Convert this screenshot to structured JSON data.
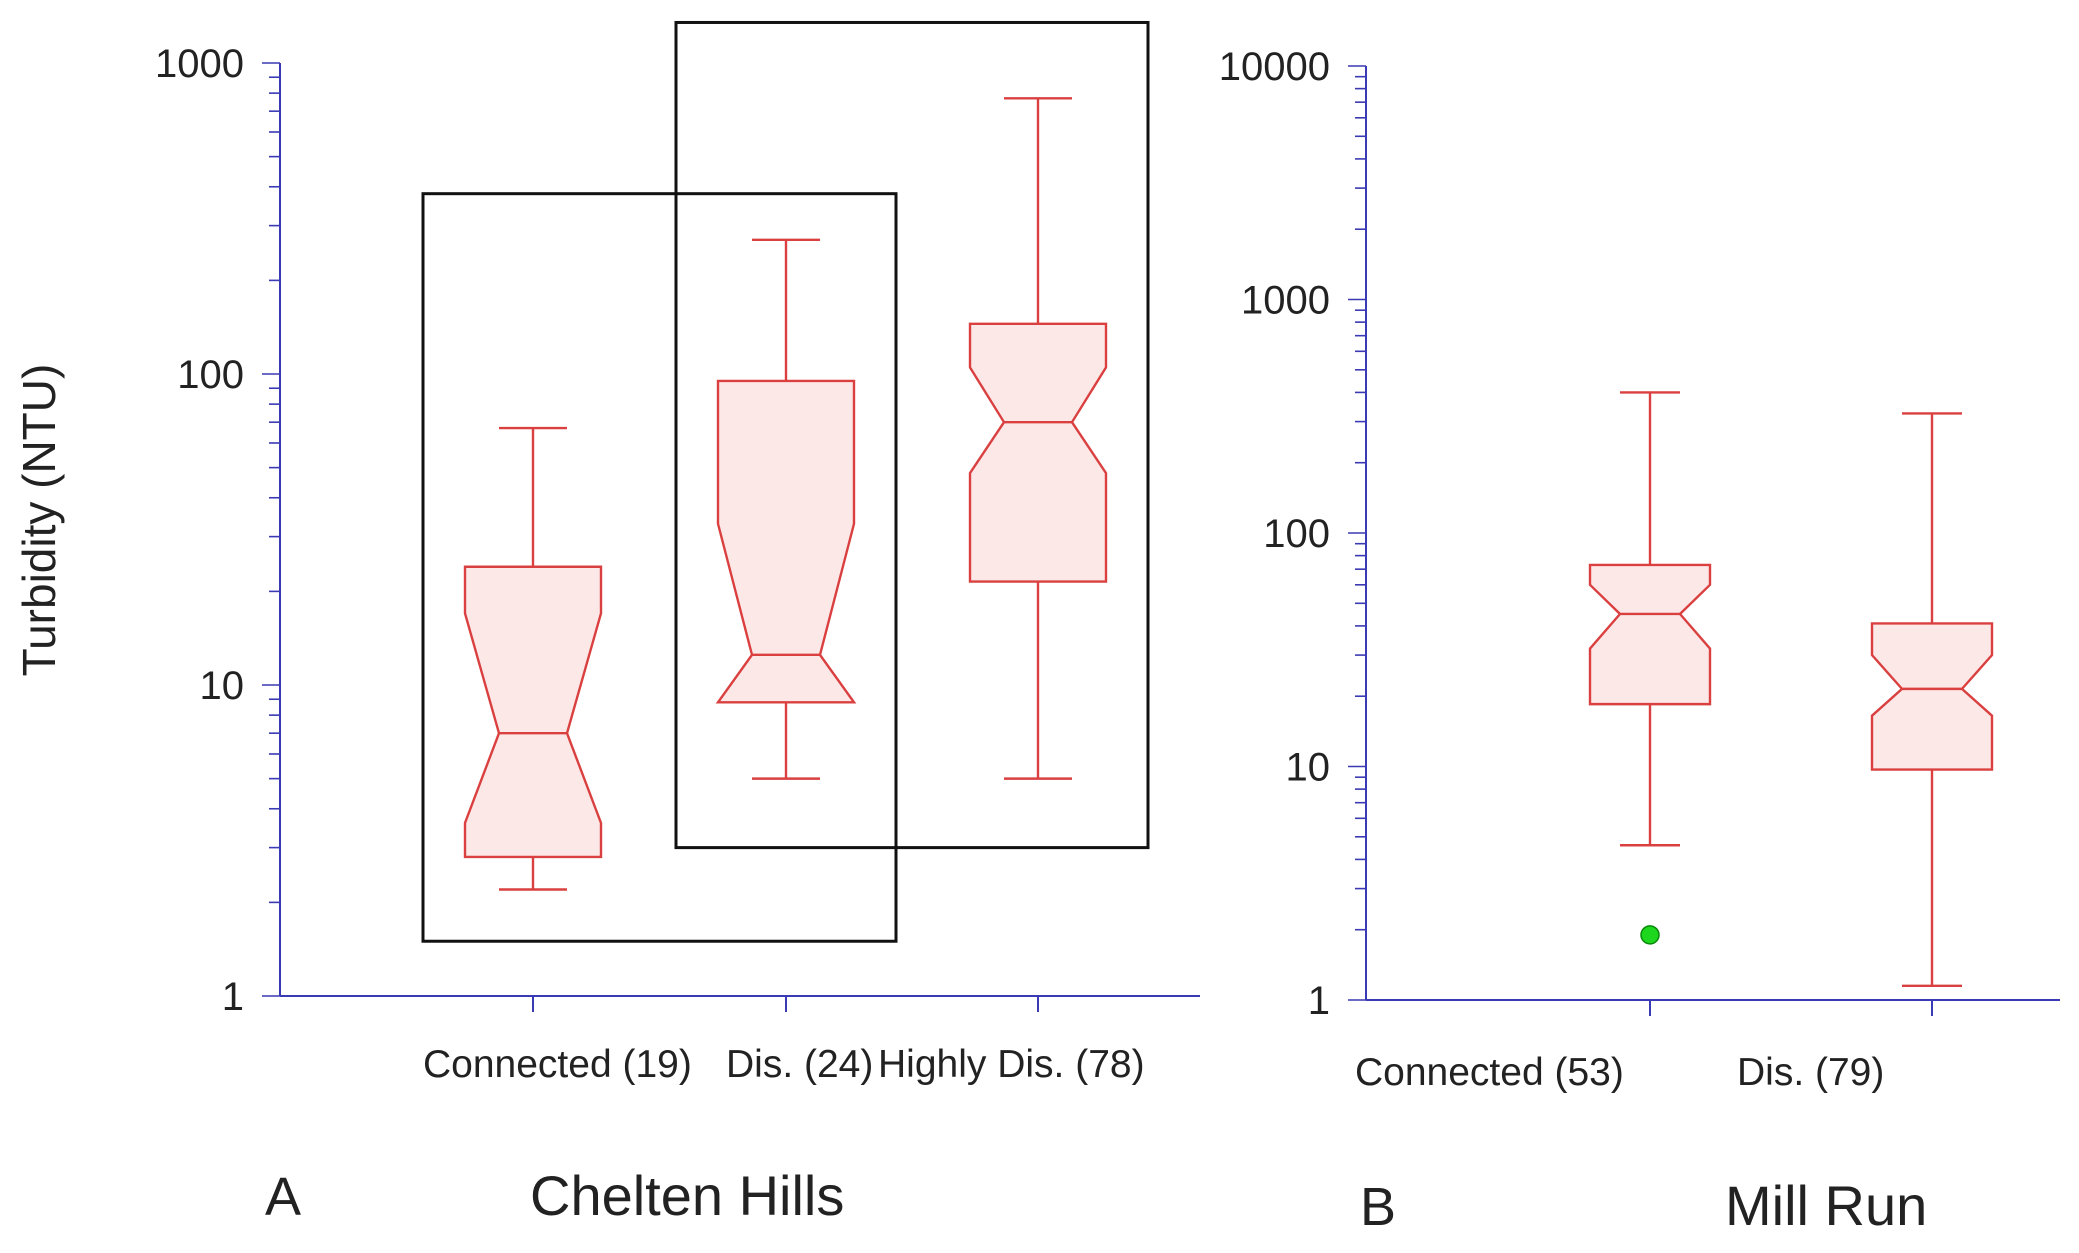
{
  "colors": {
    "axis": "#3a3ab4",
    "box_stroke": "#d9403f",
    "box_fill": "#fde8e8",
    "outlier": "#1ed61e",
    "frame": "#111111",
    "text": "#222222"
  },
  "chart_data": [
    {
      "type": "box",
      "panel_letter": "A",
      "title": "Chelten Hills",
      "ylabel": "Turbidity (NTU)",
      "yscale": "log",
      "ylim": [
        1,
        1000
      ],
      "y_ticks": [
        "1",
        "10",
        "100",
        "1000"
      ],
      "notched": true,
      "categories": [
        "Connected (19)",
        "Dis. (24)",
        "Highly Dis. (78)"
      ],
      "boxes": [
        {
          "min": 2.2,
          "q1": 2.8,
          "notch_low": 3.6,
          "median": 7,
          "notch_high": 17,
          "q3": 24,
          "max": 67
        },
        {
          "min": 5,
          "q1": 8.8,
          "notch_low": 8.8,
          "median": 12.5,
          "notch_high": 33,
          "q3": 95,
          "max": 270
        },
        {
          "min": 5,
          "q1": 21.5,
          "notch_low": 48,
          "median": 70,
          "notch_high": 105,
          "q3": 145,
          "max": 770
        }
      ],
      "outliers": [],
      "groupings": [
        {
          "from": 1,
          "to": 2,
          "y_low": 1.5,
          "y_high": 380
        },
        {
          "from": 2,
          "to": 3,
          "y_low": 3,
          "y_high": 1350
        }
      ]
    },
    {
      "type": "box",
      "panel_letter": "B",
      "title": "Mill Run",
      "yscale": "log",
      "ylim": [
        1,
        10000
      ],
      "y_ticks": [
        "1",
        "10",
        "100",
        "1000",
        "10000"
      ],
      "notched": true,
      "categories": [
        "Connected (53)",
        "Dis. (79)"
      ],
      "boxes": [
        {
          "min": 4.6,
          "q1": 18.5,
          "notch_low": 32,
          "median": 45,
          "notch_high": 60,
          "q3": 73,
          "max": 400
        },
        {
          "min": 1.15,
          "q1": 9.7,
          "notch_low": 16.5,
          "median": 21.5,
          "notch_high": 30,
          "q3": 41,
          "max": 325
        }
      ],
      "outliers": [
        {
          "box": 0,
          "value": 1.9
        }
      ],
      "groupings": []
    }
  ]
}
